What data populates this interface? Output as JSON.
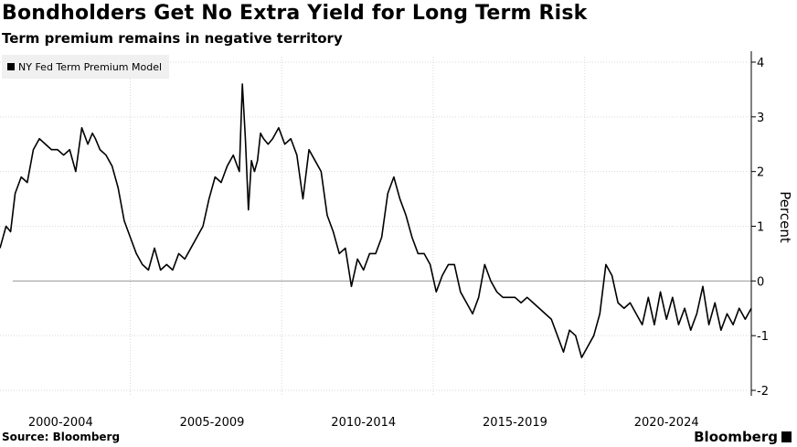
{
  "header": {
    "title": "Bondholders Get No Extra Yield for Long Term Risk",
    "subtitle": "Term premium remains in negative territory"
  },
  "footer": {
    "source": "Source: Bloomberg",
    "brand": "Bloomberg"
  },
  "colors": {
    "line": "#000000",
    "grid": "#d9d9d9",
    "zero_line": "#9a9a9a",
    "legend_bg": "#f0f0f0"
  },
  "chart_data": {
    "type": "line",
    "title": "Bondholders Get No Extra Yield for Long Term Risk",
    "subtitle": "Term premium remains in negative territory",
    "xlabel": "",
    "ylabel": "Percent",
    "y_axis_side": "right",
    "ylim": [
      -2.1,
      4.1
    ],
    "yticks": [
      4,
      3,
      2,
      1,
      0,
      -1,
      -2
    ],
    "xlim": [
      2000.0,
      2024.8
    ],
    "x_tick_labels": [
      {
        "label": "2000-2004",
        "at": 2002.0
      },
      {
        "label": "2005-2009",
        "at": 2007.0
      },
      {
        "label": "2010-2014",
        "at": 2012.0
      },
      {
        "label": "2015-2019",
        "at": 2017.0
      },
      {
        "label": "2020-2024",
        "at": 2022.0
      }
    ],
    "x_gridlines": [
      2004.3,
      2009.3,
      2014.3,
      2019.3
    ],
    "grid": true,
    "legend_position": "top-left",
    "series": [
      {
        "name": "NY Fed Term Premium Model",
        "x": [
          2000.0,
          2000.2,
          2000.35,
          2000.5,
          2000.7,
          2000.9,
          2001.1,
          2001.3,
          2001.5,
          2001.7,
          2001.9,
          2002.1,
          2002.3,
          2002.5,
          2002.7,
          2002.9,
          2003.05,
          2003.15,
          2003.3,
          2003.5,
          2003.7,
          2003.9,
          2004.1,
          2004.3,
          2004.5,
          2004.7,
          2004.9,
          2005.1,
          2005.3,
          2005.5,
          2005.7,
          2005.9,
          2006.1,
          2006.3,
          2006.5,
          2006.7,
          2006.9,
          2007.1,
          2007.3,
          2007.5,
          2007.7,
          2007.9,
          2008.0,
          2008.1,
          2008.2,
          2008.3,
          2008.4,
          2008.5,
          2008.6,
          2008.7,
          2008.85,
          2009.0,
          2009.2,
          2009.4,
          2009.6,
          2009.8,
          2010.0,
          2010.2,
          2010.4,
          2010.6,
          2010.8,
          2011.0,
          2011.2,
          2011.4,
          2011.6,
          2011.8,
          2012.0,
          2012.2,
          2012.4,
          2012.6,
          2012.8,
          2013.0,
          2013.2,
          2013.4,
          2013.6,
          2013.8,
          2014.0,
          2014.2,
          2014.4,
          2014.6,
          2014.8,
          2015.0,
          2015.2,
          2015.4,
          2015.6,
          2015.8,
          2016.0,
          2016.2,
          2016.4,
          2016.6,
          2016.8,
          2017.0,
          2017.2,
          2017.4,
          2017.6,
          2017.8,
          2018.0,
          2018.2,
          2018.4,
          2018.6,
          2018.8,
          2019.0,
          2019.2,
          2019.4,
          2019.6,
          2019.8,
          2020.0,
          2020.2,
          2020.4,
          2020.6,
          2020.8,
          2021.0,
          2021.2,
          2021.4,
          2021.6,
          2021.8,
          2022.0,
          2022.2,
          2022.4,
          2022.6,
          2022.8,
          2023.0,
          2023.2,
          2023.4,
          2023.6,
          2023.8,
          2024.0,
          2024.2,
          2024.4,
          2024.6,
          2024.8
        ],
        "values": [
          0.6,
          1.0,
          0.9,
          1.6,
          1.9,
          1.8,
          2.4,
          2.6,
          2.5,
          2.4,
          2.4,
          2.3,
          2.4,
          2.0,
          2.8,
          2.5,
          2.7,
          2.6,
          2.4,
          2.3,
          2.1,
          1.7,
          1.1,
          0.8,
          0.5,
          0.3,
          0.2,
          0.6,
          0.2,
          0.3,
          0.2,
          0.5,
          0.4,
          0.6,
          0.8,
          1.0,
          1.5,
          1.9,
          1.8,
          2.1,
          2.3,
          2.0,
          3.6,
          2.6,
          1.3,
          2.2,
          2.0,
          2.2,
          2.7,
          2.6,
          2.5,
          2.6,
          2.8,
          2.5,
          2.6,
          2.3,
          1.5,
          2.4,
          2.2,
          2.0,
          1.2,
          0.9,
          0.5,
          0.6,
          -0.1,
          0.4,
          0.2,
          0.5,
          0.5,
          0.8,
          1.6,
          1.9,
          1.5,
          1.2,
          0.8,
          0.5,
          0.5,
          0.3,
          -0.2,
          0.1,
          0.3,
          0.3,
          -0.2,
          -0.4,
          -0.6,
          -0.3,
          0.3,
          0.0,
          -0.2,
          -0.3,
          -0.3,
          -0.3,
          -0.4,
          -0.3,
          -0.4,
          -0.5,
          -0.6,
          -0.7,
          -1.0,
          -1.3,
          -0.9,
          -1.0,
          -1.4,
          -1.2,
          -1.0,
          -0.6,
          0.3,
          0.1,
          -0.4,
          -0.5,
          -0.4,
          -0.6,
          -0.8,
          -0.3,
          -0.8,
          -0.2,
          -0.7,
          -0.3,
          -0.8,
          -0.5,
          -0.9,
          -0.6,
          -0.1,
          -0.8,
          -0.4,
          -0.9,
          -0.6,
          -0.8,
          -0.5,
          -0.7,
          -0.5
        ]
      }
    ]
  }
}
